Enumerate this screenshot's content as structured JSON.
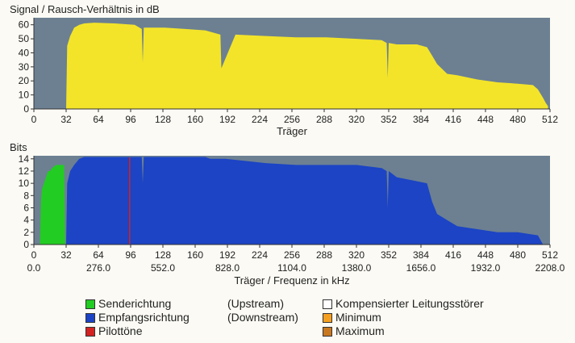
{
  "chart_data": [
    {
      "type": "area",
      "title": "Signal / Rausch-Verhältnis in dB",
      "xlabel": "Träger",
      "xlim": [
        0,
        512
      ],
      "ylim": [
        0,
        65
      ],
      "x_ticks": [
        0,
        32,
        64,
        96,
        128,
        160,
        192,
        224,
        256,
        288,
        320,
        352,
        384,
        416,
        448,
        480,
        512
      ],
      "y_ticks": [
        0,
        10,
        20,
        30,
        40,
        50,
        60
      ],
      "background_color": "#6c8092",
      "series": [
        {
          "color": "#f3e42a",
          "x": [
            32,
            33,
            36,
            40,
            45,
            50,
            60,
            80,
            100,
            107,
            108,
            109,
            130,
            150,
            170,
            185,
            186,
            200,
            230,
            260,
            290,
            320,
            345,
            350,
            351,
            352,
            360,
            380,
            390,
            395,
            400,
            410,
            420,
            440,
            460,
            480,
            495,
            500,
            505,
            508,
            510
          ],
          "values": [
            0,
            45,
            52,
            58,
            60,
            61,
            61.5,
            61,
            60,
            57,
            33,
            58,
            58,
            57,
            56,
            53,
            29,
            53,
            52,
            51,
            51,
            50,
            49,
            47,
            22,
            47,
            46,
            46,
            44,
            38,
            32,
            25,
            24,
            21,
            19,
            18,
            17,
            14,
            8,
            4,
            2
          ]
        }
      ]
    },
    {
      "type": "area",
      "title": "Bits",
      "xlabel": "Träger / Frequenz in kHz",
      "xlim": [
        0,
        512
      ],
      "ylim": [
        0,
        14.5
      ],
      "x_ticks": [
        0,
        32,
        64,
        96,
        128,
        160,
        192,
        224,
        256,
        288,
        320,
        352,
        384,
        416,
        448,
        480,
        512
      ],
      "x_tick_freq_labels": [
        "0.0",
        "276.0",
        "552.0",
        "828.0",
        "1104.0",
        "1380.0",
        "1656.0",
        "1932.0",
        "2208.0"
      ],
      "y_ticks": [
        0,
        2,
        4,
        6,
        8,
        10,
        12,
        14
      ],
      "background_color": "#6c8092",
      "series": [
        {
          "name": "Senderichtung",
          "color": "#22cc22",
          "x": [
            6,
            7,
            8,
            10,
            12,
            14,
            16,
            18,
            22,
            25,
            30,
            31
          ],
          "values": [
            0,
            7,
            9,
            10,
            11,
            12,
            12,
            12.5,
            13,
            13,
            13,
            0
          ]
        },
        {
          "name": "Empfangsrichtung",
          "color": "#1c44c4",
          "x": [
            32,
            33,
            36,
            40,
            45,
            50,
            80,
            100,
            107,
            108,
            109,
            130,
            170,
            175,
            190,
            230,
            260,
            290,
            320,
            345,
            350,
            351,
            352,
            360,
            390,
            395,
            400,
            410,
            420,
            440,
            460,
            480,
            500,
            505
          ],
          "values": [
            0,
            10,
            12,
            13,
            14,
            14.3,
            14.3,
            14.3,
            14.3,
            10,
            14.3,
            14.3,
            14.3,
            14,
            14,
            13.3,
            13,
            13,
            13,
            12.5,
            12,
            6,
            12,
            11,
            10,
            7,
            5,
            4,
            3,
            2.5,
            2,
            2,
            1.5,
            0
          ]
        }
      ],
      "pilot_tone": {
        "name": "Pilottöne",
        "x": 95,
        "color": "#d22222"
      }
    }
  ],
  "legend": [
    {
      "color": "#22cc22",
      "label": "Senderichtung",
      "note": "(Upstream)"
    },
    {
      "color": "#1c44c4",
      "label": "Empfangsrichtung",
      "note": "(Downstream)"
    },
    {
      "color": "#d22222",
      "label": "Pilottöne",
      "note": ""
    },
    {
      "color": "#ffffff",
      "label": "Kompensierter Leitungsstörer",
      "note": ""
    },
    {
      "color": "#f5a020",
      "label": "Minimum",
      "note": ""
    },
    {
      "color": "#c87820",
      "label": "Maximum",
      "note": ""
    }
  ]
}
